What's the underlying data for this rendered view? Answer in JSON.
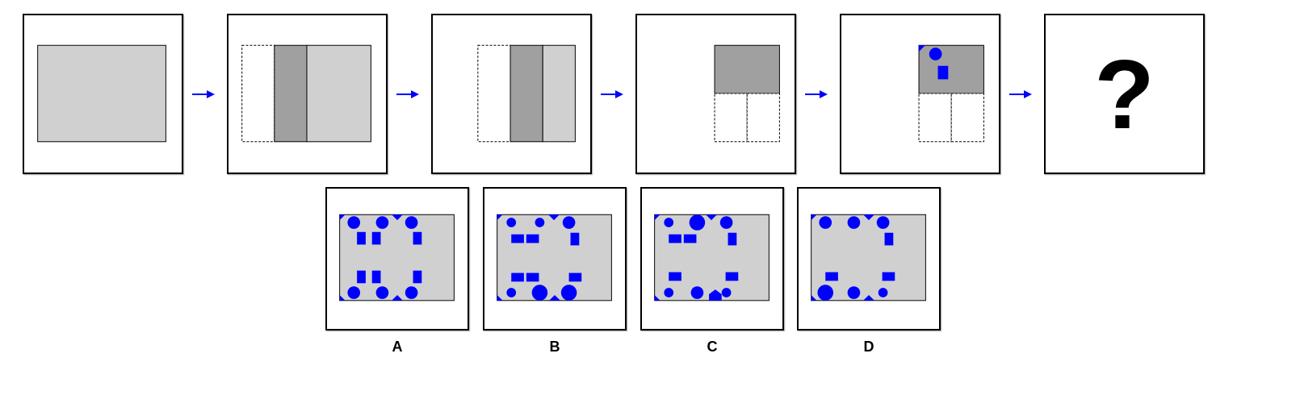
{
  "colors": {
    "panel_border": "#000000",
    "light_region": "#d0d0d0",
    "dark_region": "#a0a0a0",
    "shape_fill": "#0000ff",
    "arrow": "#0000ff",
    "dashed_outline": "#000000"
  },
  "sequence": {
    "step_count": 6,
    "unknown_symbol": "?",
    "arrow_icon": "right-arrow-icon"
  },
  "options": [
    {
      "label": "A"
    },
    {
      "label": "B"
    },
    {
      "label": "C"
    },
    {
      "label": "D"
    }
  ]
}
